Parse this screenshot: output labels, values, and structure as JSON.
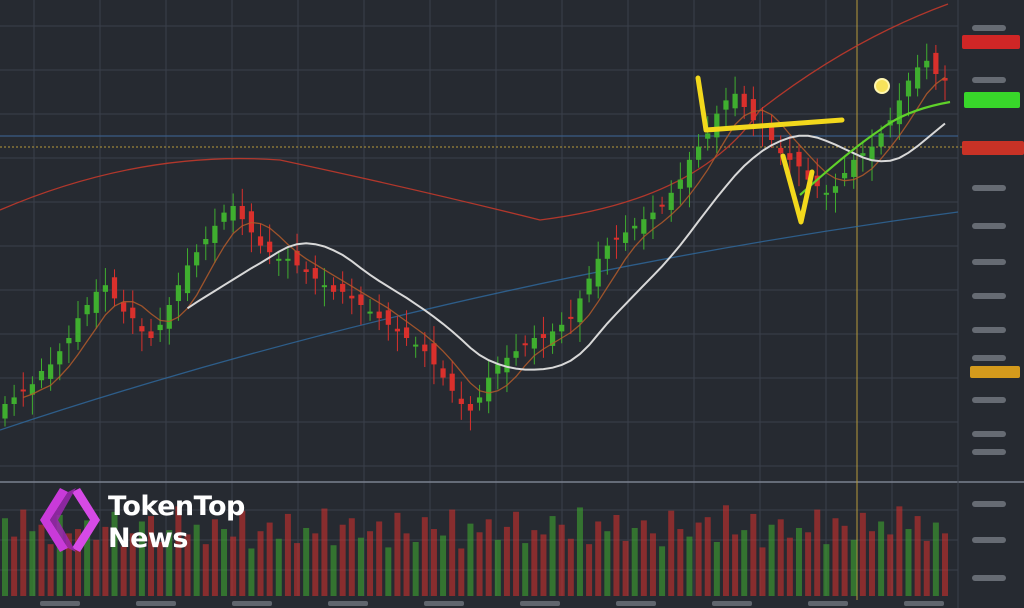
{
  "brand": {
    "line1": "TokenTop",
    "line2": "News"
  },
  "colors": {
    "background": "#262a31",
    "grid": "#3a404a",
    "up_candle": "#3fae2f",
    "down_candle": "#d9302c",
    "moving_average_white": "#d8d8d8",
    "moving_average_orange": "#b35a2a",
    "trend_line_blue": "#2f6aa0",
    "trend_line_red": "#c1392b",
    "trend_line_green": "#5fd12a",
    "annotation_yellow": "#f2d81c",
    "logo_magenta": "#c93ad9"
  },
  "chart_data": {
    "type": "candlestick",
    "title": "",
    "xlabel": "",
    "ylabel": "",
    "grid": true,
    "panels": [
      "price",
      "volume"
    ],
    "closes": [
      40,
      41,
      42,
      43,
      45,
      46,
      48,
      50,
      53,
      55,
      57,
      58,
      56,
      54,
      53,
      51,
      50,
      52,
      55,
      58,
      61,
      63,
      65,
      67,
      69,
      70,
      68,
      66,
      64,
      63,
      62,
      62,
      61,
      60,
      59,
      58,
      57,
      57,
      56,
      55,
      54,
      53,
      52,
      51,
      50,
      49,
      48,
      46,
      44,
      42,
      40,
      39,
      41,
      44,
      46,
      47,
      48,
      49,
      50,
      50,
      51,
      52,
      53,
      56,
      59,
      62,
      64,
      65,
      66,
      67,
      68,
      69,
      70,
      72,
      74,
      77,
      79,
      81,
      84,
      86,
      87,
      85,
      83,
      82,
      80,
      78,
      77,
      76,
      74,
      73,
      72,
      73,
      75,
      77,
      78,
      79,
      81,
      83,
      86,
      89,
      91,
      92,
      90,
      89
    ],
    "volumes": [
      72,
      55,
      80,
      60,
      66,
      48,
      75,
      58,
      62,
      70,
      52,
      64,
      78,
      46,
      58,
      69,
      74,
      50,
      61,
      83,
      57,
      66,
      48,
      71,
      62,
      55,
      79,
      44,
      60,
      68,
      53,
      76,
      49,
      63,
      58,
      81,
      47,
      66,
      72,
      54,
      60,
      69,
      45,
      77,
      58,
      50,
      73,
      62,
      56,
      80,
      44,
      67,
      59,
      71,
      52,
      64,
      78,
      49,
      61,
      57,
      74,
      66,
      53,
      82,
      48,
      69,
      60,
      75,
      51,
      63,
      70,
      58,
      46,
      79,
      62,
      55,
      68,
      73,
      50,
      84,
      57,
      61,
      76,
      45,
      66,
      71,
      54,
      63,
      59,
      80,
      48,
      72,
      65,
      52,
      77,
      60,
      69,
      57,
      83,
      62,
      74,
      51,
      68,
      58
    ],
    "annotations": [
      "yellow-trend-lines",
      "yellow-marker-dot",
      "horizontal-dotted-level",
      "vertical-time-marker"
    ]
  }
}
